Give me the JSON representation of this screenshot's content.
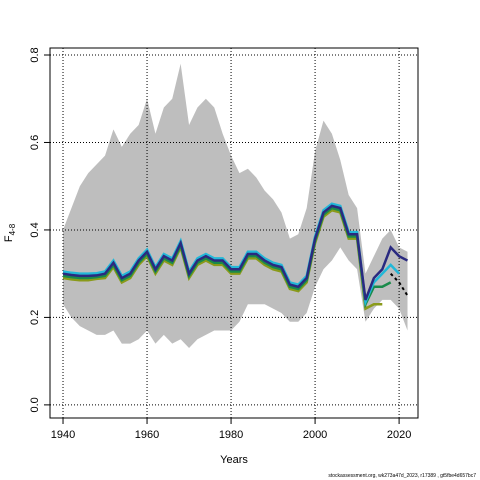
{
  "chart_data": {
    "type": "line",
    "xlabel": "Years",
    "ylabel": {
      "main": "F",
      "sub": "4-8"
    },
    "footer": "stockassessment.org, wk273a47d_2023, r17389 , gt5fbe4d657bc7",
    "x": [
      1940,
      1942,
      1944,
      1946,
      1948,
      1950,
      1952,
      1954,
      1956,
      1958,
      1960,
      1962,
      1964,
      1966,
      1968,
      1970,
      1972,
      1974,
      1976,
      1978,
      1980,
      1982,
      1984,
      1986,
      1988,
      1990,
      1992,
      1994,
      1996,
      1998,
      2000,
      2002,
      2004,
      2006,
      2008,
      2010,
      2012,
      2014,
      2016,
      2018,
      2020,
      2022
    ],
    "band": {
      "color": "#bebebe",
      "upper": [
        0.4,
        0.45,
        0.5,
        0.53,
        0.55,
        0.57,
        0.63,
        0.59,
        0.62,
        0.64,
        0.7,
        0.62,
        0.68,
        0.7,
        0.78,
        0.64,
        0.68,
        0.7,
        0.68,
        0.62,
        0.57,
        0.53,
        0.54,
        0.52,
        0.49,
        0.47,
        0.44,
        0.38,
        0.39,
        0.45,
        0.58,
        0.65,
        0.62,
        0.56,
        0.48,
        0.45,
        0.3,
        0.34,
        0.38,
        0.4,
        0.36,
        0.35
      ],
      "lower": [
        0.23,
        0.2,
        0.18,
        0.17,
        0.16,
        0.16,
        0.17,
        0.14,
        0.14,
        0.15,
        0.17,
        0.14,
        0.16,
        0.14,
        0.15,
        0.13,
        0.15,
        0.16,
        0.17,
        0.17,
        0.17,
        0.19,
        0.23,
        0.23,
        0.23,
        0.22,
        0.21,
        0.19,
        0.19,
        0.21,
        0.27,
        0.31,
        0.33,
        0.36,
        0.33,
        0.31,
        0.19,
        0.22,
        0.24,
        0.24,
        0.22,
        0.17
      ]
    },
    "series": [
      {
        "color": "#8a9a1a",
        "dash": false,
        "values": [
          0.29,
          0.287,
          0.285,
          0.285,
          0.288,
          0.29,
          0.315,
          0.28,
          0.29,
          0.32,
          0.34,
          0.3,
          0.33,
          0.32,
          0.36,
          0.29,
          0.32,
          0.33,
          0.32,
          0.32,
          0.3,
          0.3,
          0.335,
          0.335,
          0.32,
          0.31,
          0.305,
          0.265,
          0.26,
          0.28,
          0.37,
          0.43,
          0.445,
          0.44,
          0.38,
          0.38,
          0.22,
          0.23,
          0.23,
          null,
          null,
          null
        ]
      },
      {
        "color": "#1a8a4a",
        "dash": false,
        "values": [
          0.295,
          0.292,
          0.29,
          0.29,
          0.292,
          0.295,
          0.32,
          0.285,
          0.295,
          0.325,
          0.345,
          0.305,
          0.335,
          0.325,
          0.365,
          0.295,
          0.325,
          0.335,
          0.325,
          0.325,
          0.305,
          0.305,
          0.34,
          0.34,
          0.325,
          0.315,
          0.31,
          0.27,
          0.265,
          0.285,
          0.375,
          0.435,
          0.45,
          0.445,
          0.385,
          0.385,
          0.23,
          0.27,
          0.27,
          0.28,
          null,
          null
        ]
      },
      {
        "color": "#22b8d8",
        "dash": false,
        "values": [
          0.305,
          0.302,
          0.3,
          0.3,
          0.301,
          0.305,
          0.33,
          0.295,
          0.305,
          0.335,
          0.355,
          0.315,
          0.345,
          0.335,
          0.375,
          0.305,
          0.335,
          0.345,
          0.335,
          0.335,
          0.315,
          0.315,
          0.35,
          0.35,
          0.335,
          0.325,
          0.32,
          0.28,
          0.275,
          0.295,
          0.385,
          0.445,
          0.46,
          0.455,
          0.395,
          0.395,
          0.235,
          0.28,
          0.3,
          0.32,
          0.3,
          null
        ]
      },
      {
        "color": "#2a2a80",
        "dash": false,
        "values": [
          0.3,
          0.297,
          0.295,
          0.295,
          0.296,
          0.3,
          0.325,
          0.29,
          0.3,
          0.33,
          0.35,
          0.31,
          0.34,
          0.33,
          0.37,
          0.3,
          0.33,
          0.34,
          0.33,
          0.33,
          0.31,
          0.31,
          0.345,
          0.345,
          0.33,
          0.32,
          0.315,
          0.275,
          0.27,
          0.29,
          0.38,
          0.44,
          0.455,
          0.45,
          0.39,
          0.39,
          0.24,
          0.29,
          0.31,
          0.36,
          0.34,
          0.33
        ]
      },
      {
        "color": "#000000",
        "dash": true,
        "values": [
          null,
          null,
          null,
          null,
          null,
          null,
          null,
          null,
          null,
          null,
          null,
          null,
          null,
          null,
          null,
          null,
          null,
          null,
          null,
          null,
          null,
          null,
          null,
          null,
          null,
          null,
          null,
          null,
          null,
          null,
          null,
          null,
          null,
          null,
          null,
          null,
          null,
          null,
          null,
          0.3,
          0.28,
          0.25
        ]
      }
    ],
    "xlim": [
      1936.9,
      2024.5
    ],
    "ylim": [
      -0.03,
      0.816
    ],
    "xticks": [
      1940,
      1960,
      1980,
      2000,
      2020
    ],
    "yticks": [
      {
        "value": 0,
        "label": "0.0"
      },
      {
        "value": 0.2,
        "label": "0.2"
      },
      {
        "value": 0.4,
        "label": "0.4"
      },
      {
        "value": 0.6,
        "label": "0.6"
      },
      {
        "value": 0.8,
        "label": "0.8"
      }
    ],
    "grid": true
  }
}
